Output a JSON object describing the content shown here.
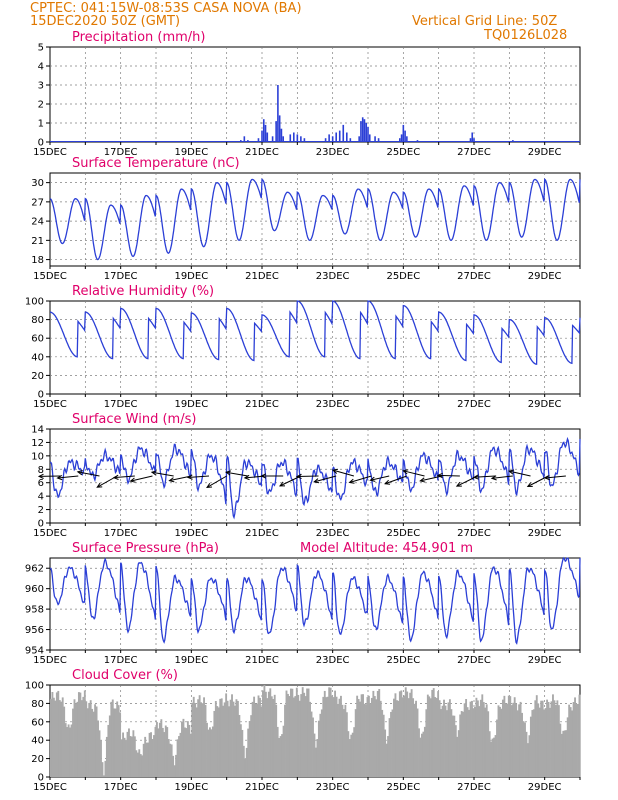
{
  "header": {
    "line1": "CPTEC:  041:15W-08:53S  CASA NOVA (BA)",
    "line2": "15DEC2020 50Z (GMT)",
    "grid_note": "Vertical Grid Line: 50Z",
    "code": "TQ0126L028"
  },
  "colors": {
    "header": "#e07800",
    "title": "#e0006a",
    "series": "#2b3fd6",
    "cloud": "#a9a9a9",
    "grid": "#808080"
  },
  "chart_data": [
    {
      "id": "precip",
      "type": "bar",
      "title": "Precipitation (mm/h)",
      "ylim": [
        0,
        5
      ],
      "yticks": [
        0,
        1,
        2,
        3,
        4,
        5
      ],
      "xlim_days": [
        15,
        30
      ],
      "xticks": [
        "15DEC",
        "17DEC",
        "19DEC",
        "21DEC",
        "23DEC",
        "25DEC",
        "27DEC",
        "29DEC"
      ],
      "bars": [
        {
          "day": 20.4,
          "value": 0.1
        },
        {
          "day": 20.5,
          "value": 0.3
        },
        {
          "day": 20.6,
          "value": 0.1
        },
        {
          "day": 20.9,
          "value": 0.2
        },
        {
          "day": 21.0,
          "value": 0.6
        },
        {
          "day": 21.05,
          "value": 1.2
        },
        {
          "day": 21.1,
          "value": 0.9
        },
        {
          "day": 21.15,
          "value": 0.5
        },
        {
          "day": 21.3,
          "value": 0.3
        },
        {
          "day": 21.4,
          "value": 1.1
        },
        {
          "day": 21.45,
          "value": 3.0
        },
        {
          "day": 21.5,
          "value": 1.4
        },
        {
          "day": 21.55,
          "value": 0.7
        },
        {
          "day": 21.6,
          "value": 0.3
        },
        {
          "day": 21.8,
          "value": 0.4
        },
        {
          "day": 21.9,
          "value": 0.5
        },
        {
          "day": 22.0,
          "value": 0.4
        },
        {
          "day": 22.1,
          "value": 0.3
        },
        {
          "day": 22.2,
          "value": 0.2
        },
        {
          "day": 22.8,
          "value": 0.2
        },
        {
          "day": 22.9,
          "value": 0.4
        },
        {
          "day": 23.0,
          "value": 0.3
        },
        {
          "day": 23.1,
          "value": 0.5
        },
        {
          "day": 23.2,
          "value": 0.6
        },
        {
          "day": 23.3,
          "value": 0.9
        },
        {
          "day": 23.4,
          "value": 0.5
        },
        {
          "day": 23.5,
          "value": 0.2
        },
        {
          "day": 23.75,
          "value": 0.3
        },
        {
          "day": 23.8,
          "value": 1.1
        },
        {
          "day": 23.85,
          "value": 1.3
        },
        {
          "day": 23.9,
          "value": 1.2
        },
        {
          "day": 23.95,
          "value": 1.0
        },
        {
          "day": 24.0,
          "value": 0.8
        },
        {
          "day": 24.05,
          "value": 0.4
        },
        {
          "day": 24.2,
          "value": 0.3
        },
        {
          "day": 24.3,
          "value": 0.2
        },
        {
          "day": 24.9,
          "value": 0.2
        },
        {
          "day": 24.95,
          "value": 0.4
        },
        {
          "day": 25.0,
          "value": 0.9
        },
        {
          "day": 25.05,
          "value": 0.6
        },
        {
          "day": 25.1,
          "value": 0.3
        },
        {
          "day": 25.4,
          "value": 0.1
        },
        {
          "day": 26.9,
          "value": 0.2
        },
        {
          "day": 26.95,
          "value": 0.5
        },
        {
          "day": 27.0,
          "value": 0.2
        },
        {
          "day": 28.1,
          "value": 0.1
        }
      ]
    },
    {
      "id": "temperature",
      "type": "line",
      "title": "Surface Temperature (nC)",
      "ylim": [
        17,
        31.5
      ],
      "yticks": [
        18,
        21,
        24,
        27,
        30
      ],
      "xlim_days": [
        15,
        30
      ],
      "xticks": [
        "15DEC",
        "17DEC",
        "19DEC",
        "21DEC",
        "23DEC",
        "25DEC",
        "27DEC",
        "29DEC"
      ],
      "daily_max": [
        27.5,
        26.5,
        28,
        29,
        30,
        30.5,
        28.5,
        28,
        29,
        28.5,
        29,
        29.5,
        30,
        30.5,
        30.5,
        30.5
      ],
      "daily_min": [
        20.5,
        18,
        18.5,
        19,
        20,
        21,
        22.5,
        21,
        22,
        21,
        21.5,
        21,
        21,
        21.5,
        21,
        20.5
      ]
    },
    {
      "id": "humidity",
      "type": "line",
      "title": "Relative Humidity (%)",
      "ylim": [
        0,
        100
      ],
      "yticks": [
        0,
        20,
        40,
        60,
        80,
        100
      ],
      "xlim_days": [
        15,
        30
      ],
      "xticks": [
        "15DEC",
        "17DEC",
        "19DEC",
        "21DEC",
        "23DEC",
        "25DEC",
        "27DEC",
        "29DEC"
      ],
      "daily_max": [
        88,
        92,
        92,
        87,
        92,
        85,
        100,
        100,
        100,
        95,
        88,
        85,
        80,
        82,
        82,
        75
      ],
      "daily_min": [
        40,
        38,
        38,
        38,
        37,
        36,
        40,
        40,
        38,
        38,
        38,
        36,
        34,
        32,
        33,
        40
      ]
    },
    {
      "id": "wind",
      "type": "line",
      "title": "Surface Wind (m/s)",
      "ylim": [
        0,
        14
      ],
      "yticks": [
        0,
        2,
        4,
        6,
        8,
        10,
        12,
        14
      ],
      "xlim_days": [
        15,
        30
      ],
      "xticks": [
        "15DEC",
        "17DEC",
        "19DEC",
        "21DEC",
        "23DEC",
        "25DEC",
        "27DEC",
        "29DEC"
      ],
      "daily_max": [
        9,
        10,
        11,
        11,
        10,
        9,
        9,
        8,
        9,
        9,
        10,
        10,
        11,
        11,
        12,
        12
      ],
      "daily_min": [
        4,
        7,
        6.5,
        6,
        5.5,
        1.5,
        4.5,
        3,
        3.5,
        4.5,
        5,
        5,
        5,
        5,
        5.5,
        6
      ],
      "arrow_days": [
        15.3,
        15.8,
        16.4,
        16.9,
        17.4,
        17.9,
        18.5,
        19.0,
        19.5,
        20.0,
        20.6,
        21.1,
        21.6,
        22.1,
        22.6,
        23.1,
        23.6,
        24.1,
        24.6,
        25.1,
        25.6,
        26.1,
        26.6,
        27.1,
        27.6,
        28.1,
        28.6,
        29.1,
        29.6
      ]
    },
    {
      "id": "pressure",
      "type": "line",
      "title": "Surface Pressure (hPa)",
      "altitude_label": "Model Altitude: 454.901  m",
      "ylim": [
        954,
        963
      ],
      "yticks": [
        954,
        956,
        958,
        960,
        962
      ],
      "xlim_days": [
        15,
        30
      ],
      "xticks": [
        "15DEC",
        "17DEC",
        "19DEC",
        "21DEC",
        "23DEC",
        "25DEC",
        "27DEC",
        "29DEC"
      ],
      "daily_max": [
        962,
        962.5,
        962.5,
        961,
        961,
        961,
        962,
        961.5,
        961,
        961,
        961.5,
        961.5,
        962,
        962,
        963,
        962
      ],
      "daily_min": [
        958.5,
        957,
        956,
        955,
        956,
        956,
        955.5,
        956.5,
        955.5,
        956,
        955,
        955.5,
        955,
        955,
        956,
        958
      ]
    },
    {
      "id": "cloud",
      "type": "bar",
      "title": "Cloud Cover (%)",
      "ylim": [
        0,
        100
      ],
      "yticks": [
        0,
        20,
        40,
        60,
        80,
        100
      ],
      "xlim_days": [
        15,
        30
      ],
      "xticks": [
        "15DEC",
        "17DEC",
        "19DEC",
        "21DEC",
        "23DEC",
        "25DEC",
        "27DEC",
        "29DEC"
      ],
      "daily_level": [
        85,
        80,
        45,
        55,
        85,
        80,
        95,
        90,
        85,
        90,
        88,
        82,
        80,
        82,
        82,
        70
      ],
      "daily_dip": [
        55,
        5,
        25,
        20,
        45,
        30,
        35,
        40,
        40,
        40,
        45,
        45,
        40,
        40,
        45,
        10
      ]
    }
  ]
}
